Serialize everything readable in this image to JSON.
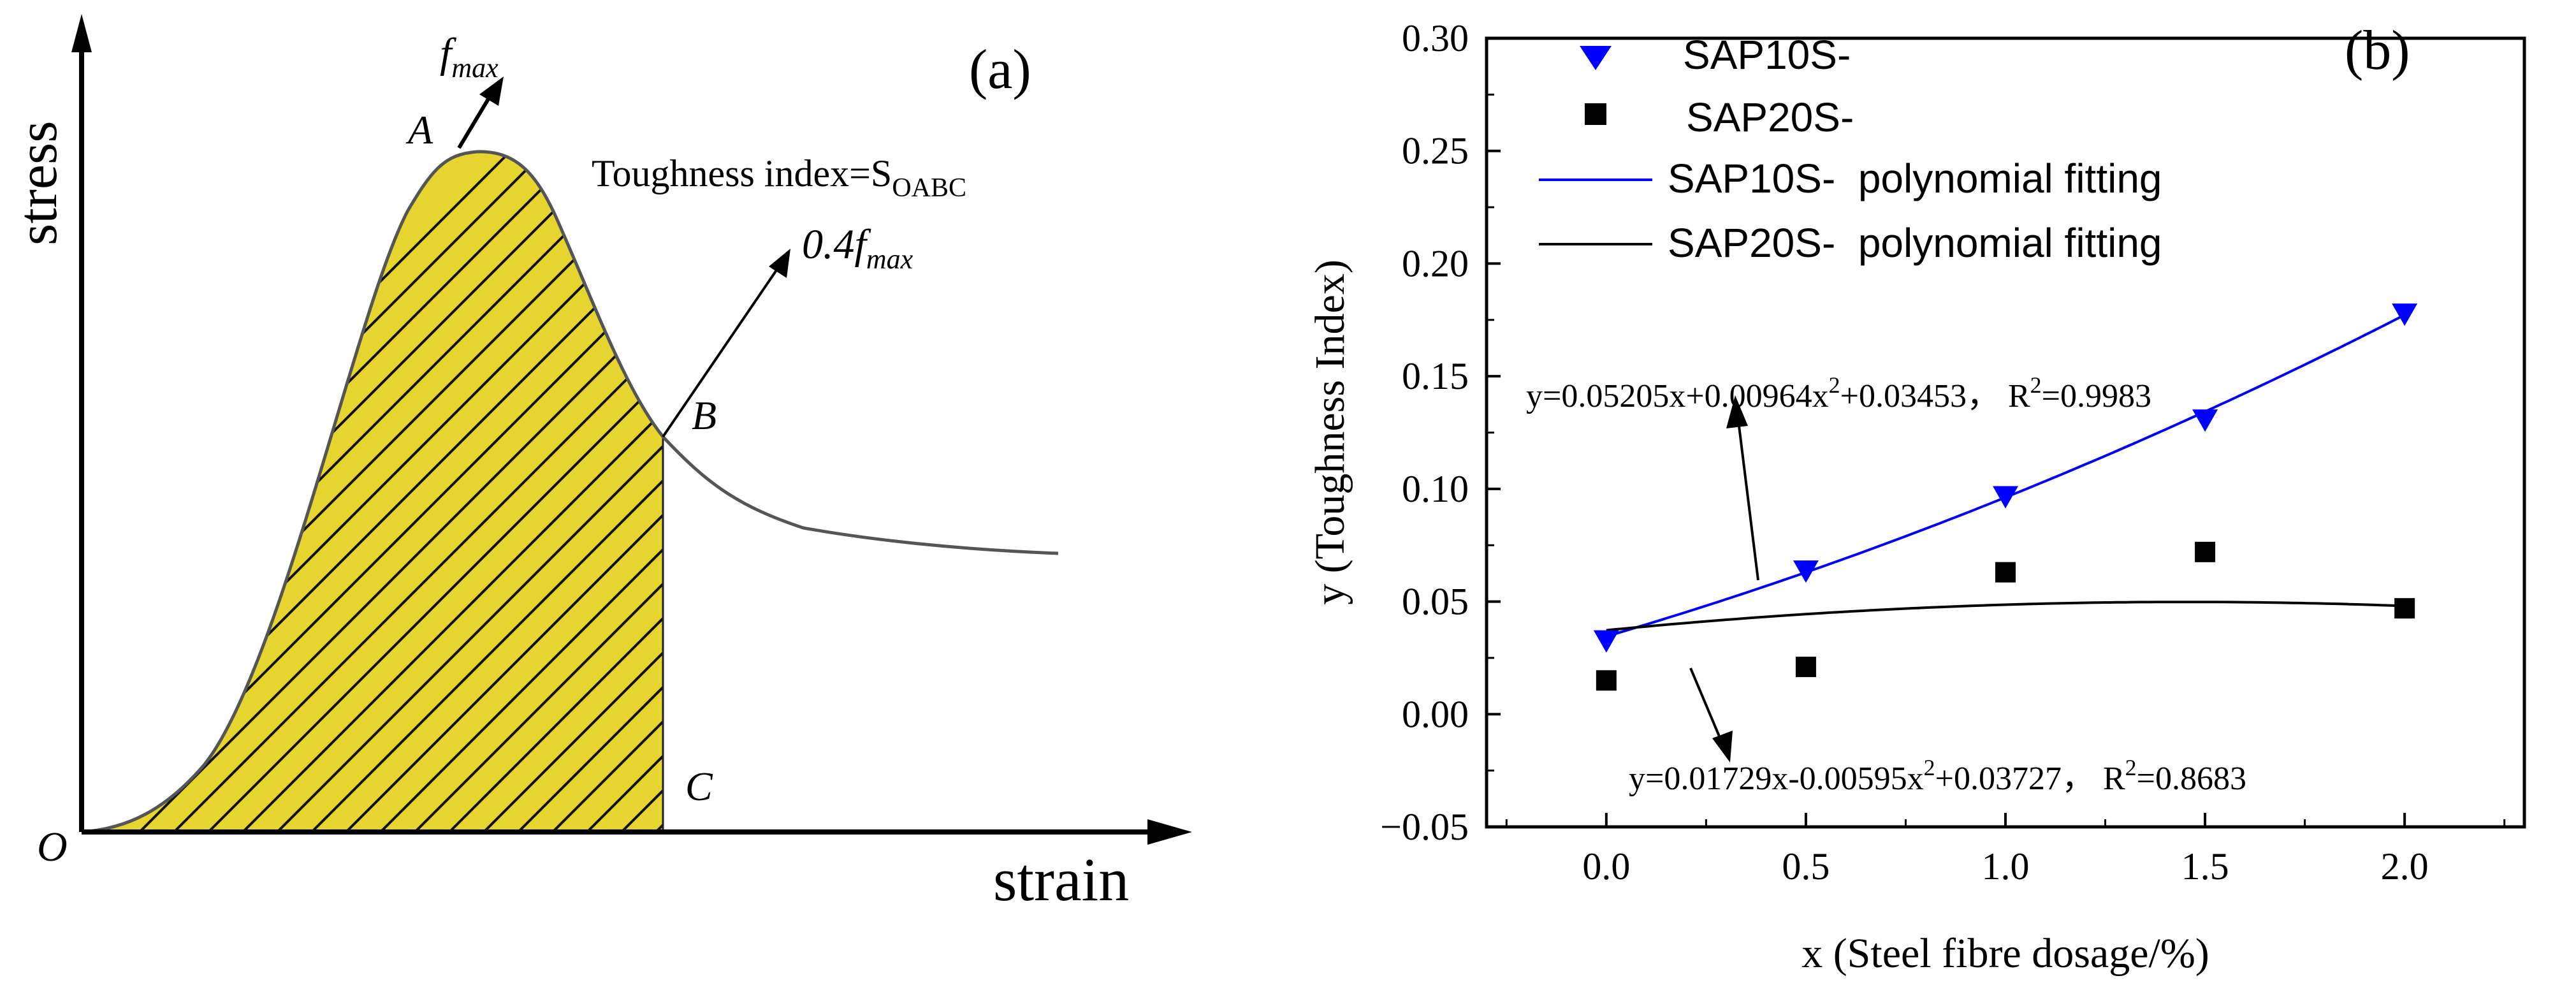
{
  "chart_data": [
    {
      "type": "line",
      "panel_label": "(a)",
      "xlabel": "strain",
      "ylabel": "stress",
      "origin_label": "O",
      "points": {
        "A": "A",
        "B": "B",
        "C": "C"
      },
      "peak_label": {
        "base": "f",
        "sub": "max"
      },
      "annotation_toughness": {
        "text": "Toughness index=S",
        "sub": "OABC"
      },
      "annotation_04": {
        "prefix": "0.4",
        "base": "f",
        "sub": "max"
      },
      "colors": {
        "fill": "#e6d52f",
        "curve": "#555555",
        "hatch": "#111111",
        "axis": "#000000"
      }
    },
    {
      "type": "scatter",
      "panel_label": "(b)",
      "xlabel": "x (Steel fibre dosage/%)",
      "ylabel": "y (Toughness Index)",
      "xlim": [
        -0.3,
        2.3
      ],
      "ylim": [
        -0.05,
        0.3
      ],
      "xticks": [
        0.0,
        0.5,
        1.0,
        1.5,
        2.0
      ],
      "xtick_labels": [
        "0.0",
        "0.5",
        "1.0",
        "1.5",
        "2.0"
      ],
      "yticks": [
        -0.05,
        0.0,
        0.05,
        0.1,
        0.15,
        0.2,
        0.25,
        0.3
      ],
      "ytick_labels": [
        "−0.05",
        "0.00",
        "0.05",
        "0.10",
        "0.15",
        "0.20",
        "0.25",
        "0.30"
      ],
      "series": [
        {
          "name": "SAP10S-",
          "marker": "triangle-down",
          "color": "#0000ff",
          "x": [
            0.0,
            0.5,
            1.0,
            1.5,
            2.0
          ],
          "y": [
            0.033,
            0.064,
            0.097,
            0.131,
            0.178
          ]
        },
        {
          "name": "SAP20S-",
          "marker": "square",
          "color": "#000000",
          "x": [
            0.0,
            0.5,
            1.0,
            1.5,
            2.0
          ],
          "y": [
            0.015,
            0.021,
            0.063,
            0.072,
            0.047
          ]
        }
      ],
      "fits": [
        {
          "name": "SAP10S-  polynomial fitting",
          "color": "#0000ff",
          "a": 0.05205,
          "b": 0.00964,
          "c": 0.03453
        },
        {
          "name": "SAP20S-  polynomial fitting",
          "color": "#000000",
          "a": 0.01729,
          "b": -0.00595,
          "c": 0.03727
        }
      ],
      "equations": [
        {
          "main": "y=0.05205x+0.00964x",
          "sup": "2",
          "tail": "+0.03453， R",
          "sup2": "2",
          "end": "=0.9983"
        },
        {
          "main": "y=0.01729x-0.00595x",
          "sup": "2",
          "tail": "+0.03727， R",
          "sup2": "2",
          "end": "=0.8683"
        }
      ]
    }
  ]
}
